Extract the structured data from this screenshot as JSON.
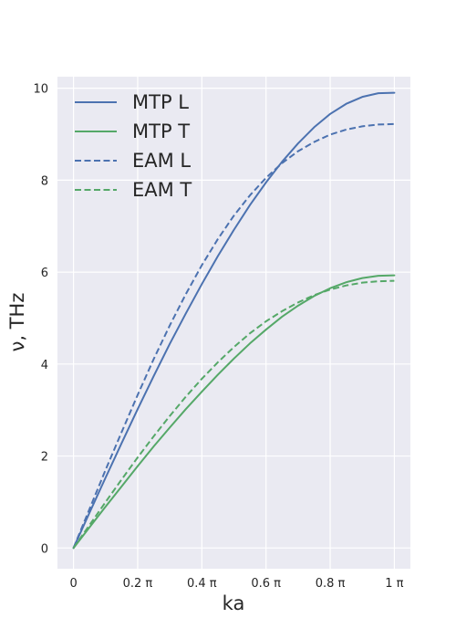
{
  "chart_data": {
    "type": "line",
    "title": "",
    "xlabel": "ka",
    "ylabel": "ν, THz",
    "xlim": [
      -0.05,
      1.05
    ],
    "ylim": [
      -0.45,
      10.25
    ],
    "x_ticks": [
      {
        "value": 0,
        "label": "0"
      },
      {
        "value": 0.2,
        "label": "0.2 π"
      },
      {
        "value": 0.4,
        "label": "0.4 π"
      },
      {
        "value": 0.6,
        "label": "0.6 π"
      },
      {
        "value": 0.8,
        "label": "0.8 π"
      },
      {
        "value": 1.0,
        "label": "1 π"
      }
    ],
    "y_ticks": [
      {
        "value": 0,
        "label": "0"
      },
      {
        "value": 2,
        "label": "2"
      },
      {
        "value": 4,
        "label": "4"
      },
      {
        "value": 6,
        "label": "6"
      },
      {
        "value": 8,
        "label": "8"
      },
      {
        "value": 10,
        "label": "10"
      }
    ],
    "grid": true,
    "legend_position": "top-left",
    "x": [
      0,
      0.05,
      0.1,
      0.15,
      0.2,
      0.25,
      0.3,
      0.35,
      0.4,
      0.45,
      0.5,
      0.55,
      0.6,
      0.65,
      0.7,
      0.75,
      0.8,
      0.85,
      0.9,
      0.95,
      1.0
    ],
    "series": [
      {
        "name": "MTP L",
        "color": "#4c72b0",
        "dash": "solid",
        "values": [
          0,
          0.77,
          1.53,
          2.28,
          3.02,
          3.74,
          4.44,
          5.1,
          5.74,
          6.35,
          6.92,
          7.46,
          7.95,
          8.4,
          8.8,
          9.15,
          9.44,
          9.66,
          9.81,
          9.89,
          9.9
        ]
      },
      {
        "name": "MTP T",
        "color": "#55a868",
        "dash": "solid",
        "values": [
          0,
          0.45,
          0.9,
          1.34,
          1.78,
          2.21,
          2.62,
          3.02,
          3.4,
          3.77,
          4.12,
          4.45,
          4.75,
          5.03,
          5.27,
          5.48,
          5.65,
          5.78,
          5.87,
          5.92,
          5.93
        ]
      },
      {
        "name": "EAM L",
        "color": "#4c72b0",
        "dash": "dashed",
        "values": [
          0,
          0.85,
          1.7,
          2.52,
          3.33,
          4.11,
          4.84,
          5.52,
          6.15,
          6.72,
          7.23,
          7.67,
          8.05,
          8.37,
          8.63,
          8.83,
          8.99,
          9.1,
          9.17,
          9.21,
          9.22
        ]
      },
      {
        "name": "EAM T",
        "color": "#55a868",
        "dash": "dashed",
        "values": [
          0,
          0.5,
          1.0,
          1.49,
          1.97,
          2.43,
          2.87,
          3.29,
          3.68,
          4.04,
          4.37,
          4.67,
          4.93,
          5.15,
          5.34,
          5.5,
          5.62,
          5.71,
          5.77,
          5.8,
          5.81
        ]
      }
    ]
  }
}
